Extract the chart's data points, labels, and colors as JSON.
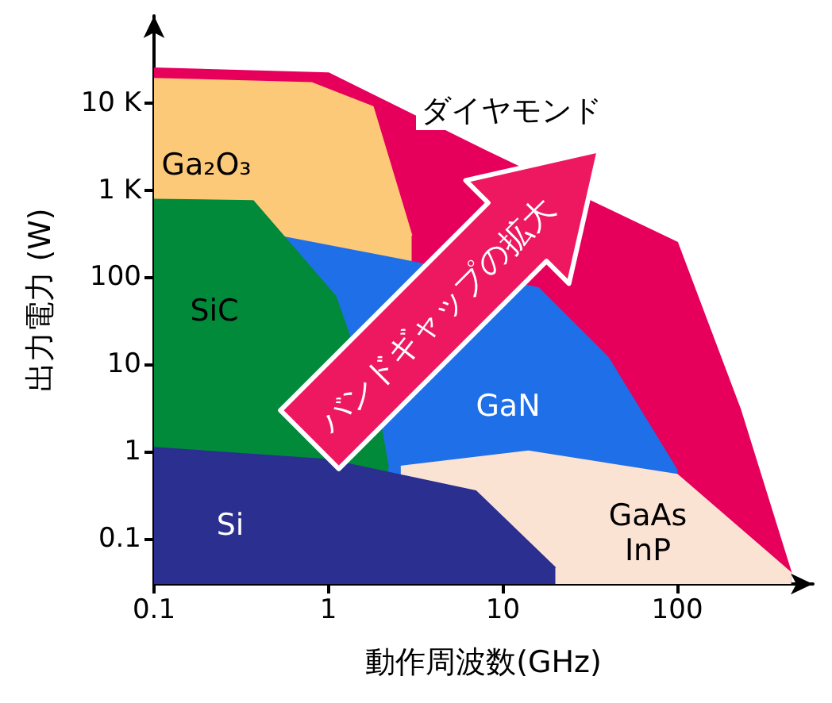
{
  "chart_data": {
    "type": "area",
    "xlabel": "動作周波数(GHz)",
    "ylabel": "出力電力 (W)",
    "log": "xy",
    "xlim": [
      0.1,
      600
    ],
    "ylim": [
      0.03,
      100000
    ],
    "xticks": [
      0.1,
      1,
      10,
      100
    ],
    "yticks": [
      0.1,
      1,
      10,
      100,
      {
        "value": 1000,
        "label": "1 K"
      },
      {
        "value": 10000,
        "label": "10 K"
      }
    ],
    "series": [
      {
        "name": "ダイヤモンド",
        "color": "#e6005c",
        "x": [
          0.1,
          1,
          8,
          100,
          230,
          450
        ],
        "values": [
          25000,
          22000,
          2800,
          250,
          3,
          0.04
        ]
      },
      {
        "name": "Ga₂O₃",
        "color": "#fcc978",
        "x": [
          0.1,
          0.8,
          1.8,
          3
        ],
        "values": [
          19000,
          17000,
          9000,
          300
        ]
      },
      {
        "name": "GaN",
        "color": "#1f6fe8",
        "x": [
          0.5,
          3,
          16,
          40,
          100
        ],
        "values": [
          300,
          150,
          75,
          12,
          0.6
        ]
      },
      {
        "name": "SiC",
        "color": "#008a3a",
        "x": [
          0.1,
          0.37,
          1.1,
          2,
          2.2
        ],
        "values": [
          780,
          750,
          60,
          1.9,
          0.66
        ]
      },
      {
        "name": "GaAs\nInP",
        "color": "#fbe3d4",
        "x": [
          2.6,
          14,
          100,
          450
        ],
        "values": [
          0.67,
          1,
          0.54,
          0.04
        ]
      },
      {
        "name": "Si",
        "color": "#2b2f8f",
        "x": [
          0.1,
          1,
          7,
          20
        ],
        "values": [
          1.1,
          0.8,
          0.35,
          0.046
        ]
      }
    ],
    "annotations": [
      "バンドギャップの拡大"
    ]
  }
}
